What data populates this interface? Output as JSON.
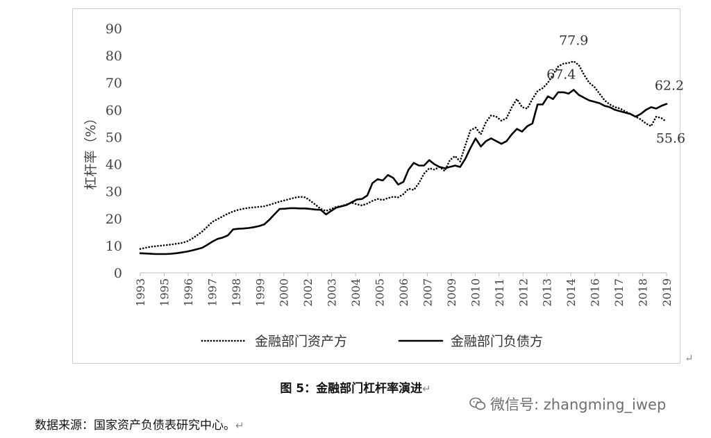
{
  "chart_data": {
    "type": "line",
    "ylabel": "杠杆率（%）",
    "ylim": [
      0,
      90
    ],
    "yticks": [
      0,
      10,
      20,
      30,
      40,
      50,
      60,
      70,
      80,
      90
    ],
    "xticks": [
      "1993",
      "1995",
      "1996",
      "1997",
      "1998",
      "1999",
      "2000",
      "2002",
      "2003",
      "2004",
      "2005",
      "2006",
      "2007",
      "2009",
      "2010",
      "2011",
      "2012",
      "2013",
      "2014",
      "2016",
      "2017",
      "2018",
      "2019"
    ],
    "legend_position": "bottom",
    "series": [
      {
        "name": "金融部门资产方",
        "style": "dotted",
        "values": [
          8.8,
          9.2,
          9.6,
          9.8,
          10.0,
          10.2,
          10.4,
          10.7,
          11.0,
          11.5,
          12.5,
          13.8,
          15.2,
          17.0,
          18.8,
          19.8,
          20.8,
          21.8,
          22.6,
          23.2,
          23.6,
          23.9,
          24.1,
          24.3,
          24.5,
          25.0,
          25.6,
          26.2,
          26.7,
          27.2,
          27.7,
          28.0,
          27.8,
          26.5,
          25.0,
          23.5,
          22.8,
          23.5,
          24.3,
          24.6,
          25.2,
          25.8,
          25.2,
          24.8,
          25.5,
          26.5,
          27.2,
          26.8,
          27.5,
          28.0,
          27.8,
          29.0,
          31.0,
          30.5,
          33.0,
          36.5,
          38.5,
          38.0,
          39.0,
          37.5,
          41.5,
          43.0,
          41.0,
          47.0,
          52.5,
          53.5,
          51.0,
          55.5,
          58.0,
          57.5,
          56.0,
          57.0,
          61.0,
          64.0,
          61.0,
          60.5,
          64.0,
          67.0,
          68.0,
          70.0,
          73.0,
          76.0,
          77.0,
          77.3,
          77.9,
          76.5,
          73.0,
          70.0,
          68.5,
          66.0,
          63.5,
          62.0,
          61.0,
          60.5,
          59.5,
          58.5,
          57.5,
          56.5,
          55.0,
          54.0,
          57.5,
          57.0,
          55.6
        ],
        "labels": [
          {
            "text": "77.9",
            "index": 84
          },
          {
            "text": "55.6",
            "index": 102
          }
        ]
      },
      {
        "name": "金融部门负债方",
        "style": "solid",
        "values": [
          7.2,
          7.1,
          7.0,
          6.9,
          6.9,
          6.9,
          7.0,
          7.2,
          7.5,
          7.8,
          8.2,
          8.7,
          9.2,
          10.3,
          11.5,
          12.5,
          13.0,
          13.8,
          16.0,
          16.2,
          16.3,
          16.5,
          16.8,
          17.2,
          17.8,
          19.5,
          21.5,
          23.5,
          23.6,
          23.8,
          23.8,
          23.7,
          23.7,
          23.5,
          23.3,
          23.2,
          21.5,
          22.8,
          24.0,
          24.5,
          25.0,
          26.0,
          27.0,
          27.2,
          28.5,
          33.0,
          34.5,
          34.0,
          36.0,
          35.0,
          32.5,
          33.5,
          38.0,
          40.5,
          39.5,
          39.5,
          41.5,
          40.0,
          39.0,
          38.5,
          39.0,
          39.5,
          39.0,
          42.0,
          46.0,
          49.5,
          46.5,
          48.5,
          49.5,
          48.5,
          47.5,
          48.5,
          51.0,
          53.0,
          52.0,
          54.0,
          55.0,
          62.0,
          62.0,
          65.0,
          64.0,
          66.5,
          66.5,
          66.0,
          67.4,
          65.5,
          64.5,
          63.5,
          63.0,
          62.5,
          61.5,
          61.0,
          60.0,
          59.5,
          59.0,
          58.5,
          57.5,
          58.5,
          60.0,
          61.0,
          60.5,
          61.5,
          62.2
        ],
        "labels": [
          {
            "text": "67.4",
            "index": 84
          },
          {
            "text": "62.2",
            "index": 102
          }
        ]
      }
    ]
  },
  "caption": "图 5：金融部门杠杆率演进",
  "source": "数据来源：国家资产负债表研究中心。",
  "watermark": "微信号: zhangming_iwep",
  "return_mark": "↵"
}
